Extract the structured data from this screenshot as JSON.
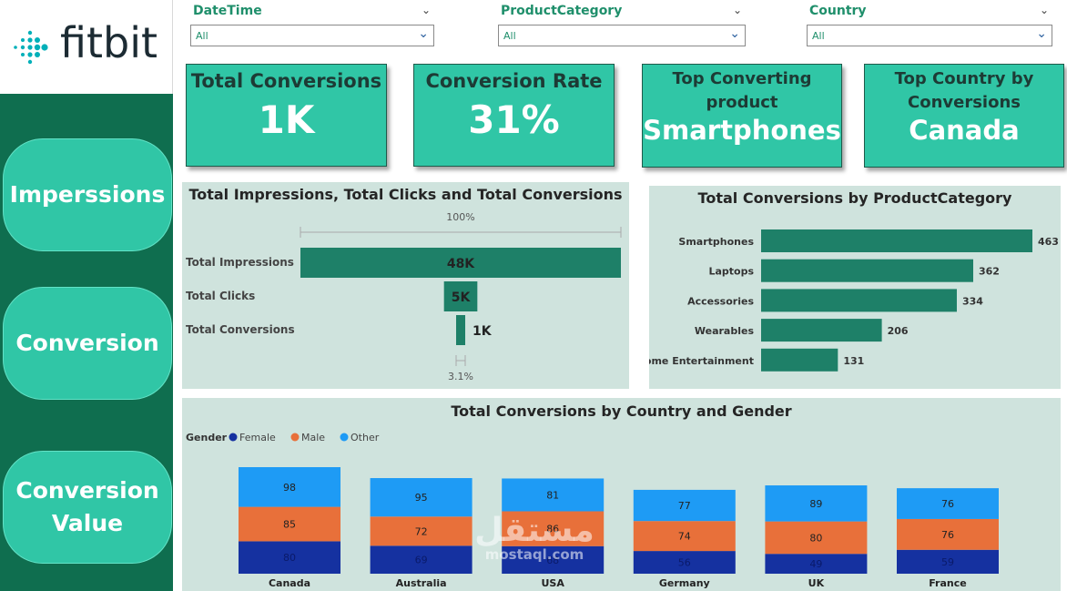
{
  "brand": {
    "name": "fitbit",
    "color": "#00b0b9"
  },
  "sidebar": {
    "buttons": [
      {
        "label": "Imperssions"
      },
      {
        "label": "Conversion"
      },
      {
        "label": "Conversion Value"
      }
    ]
  },
  "filters": [
    {
      "label": "DateTime",
      "value": "All"
    },
    {
      "label": "ProductCategory",
      "value": "All"
    },
    {
      "label": "Country",
      "value": "All"
    }
  ],
  "kpis": [
    {
      "title": "Total Conversions",
      "value": "1K"
    },
    {
      "title": "Conversion Rate",
      "value": "31%"
    },
    {
      "title": "Top Converting product",
      "value": "Smartphones"
    },
    {
      "title": "Top Country by Conversions",
      "value": "Canada"
    }
  ],
  "colors": {
    "bar": "#1e8068",
    "female": "#1531a0",
    "male": "#e8703a",
    "other": "#1e9bf5",
    "accent": "#30c6a6",
    "sidebar": "#0f6e4f"
  },
  "chart_data": [
    {
      "type": "bar",
      "title": "Total Impressions, Total Clicks and Total Conversions",
      "categories": [
        "Total Impressions",
        "Total Clicks",
        "Total Conversions"
      ],
      "values": [
        48,
        5,
        1
      ],
      "value_labels": [
        "48K",
        "5K",
        "1K"
      ],
      "top_label": "100%",
      "bottom_label": "3.1%"
    },
    {
      "type": "bar",
      "title": "Total Conversions by ProductCategory",
      "categories": [
        "Smartphones",
        "Laptops",
        "Accessories",
        "Wearables",
        "Home Entertainment"
      ],
      "values": [
        463,
        362,
        334,
        206,
        131
      ]
    },
    {
      "type": "bar",
      "title": "Total Conversions by Country and Gender",
      "legend_title": "Gender",
      "categories": [
        "Canada",
        "Australia",
        "USA",
        "Germany",
        "UK",
        "France"
      ],
      "series": [
        {
          "name": "Female",
          "values": [
            80,
            69,
            68,
            56,
            49,
            59
          ]
        },
        {
          "name": "Male",
          "values": [
            85,
            72,
            86,
            74,
            80,
            76
          ]
        },
        {
          "name": "Other",
          "values": [
            98,
            95,
            81,
            77,
            89,
            76
          ]
        }
      ]
    }
  ],
  "watermark": {
    "arabic": "مستقل",
    "latin": "mostaql.com"
  }
}
